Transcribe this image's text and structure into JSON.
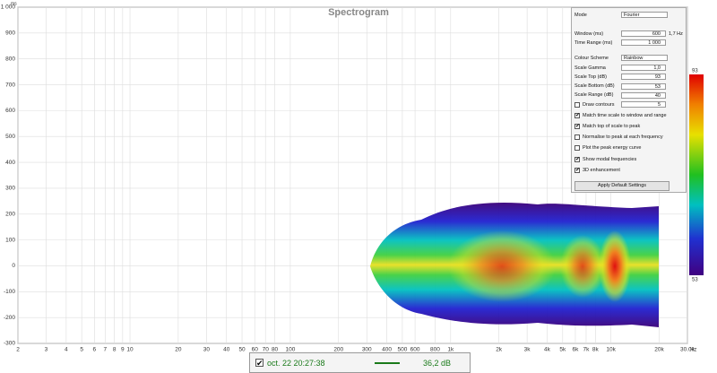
{
  "plot": {
    "title": "Spectrogram",
    "y_unit": "ms",
    "x_unit": "Hz",
    "ylim": [
      -300,
      1000
    ],
    "xlim": [
      2,
      30000
    ],
    "yticks": [
      {
        "value": 1000,
        "label": "1 000"
      },
      900,
      800,
      700,
      600,
      500,
      400,
      300,
      200,
      100,
      0,
      -100,
      -200,
      -300
    ],
    "xticks": [
      2,
      3,
      4,
      5,
      6,
      7,
      8,
      9,
      10,
      20,
      30,
      40,
      50,
      60,
      70,
      80,
      100,
      200,
      300,
      400,
      500,
      600,
      800,
      {
        "value": 1000,
        "label": "1k"
      },
      {
        "value": 2000,
        "label": "2k"
      },
      {
        "value": 3000,
        "label": "3k"
      },
      {
        "value": 4000,
        "label": "4k"
      },
      {
        "value": 5000,
        "label": "5k"
      },
      {
        "value": 6000,
        "label": "6k"
      },
      {
        "value": 7000,
        "label": "7k"
      },
      {
        "value": 8000,
        "label": "8k"
      },
      {
        "value": 10000,
        "label": "10k"
      },
      {
        "value": 20000,
        "label": "20k"
      },
      {
        "value": 30000,
        "label": "30.0k"
      }
    ]
  },
  "controls": {
    "mode": {
      "label": "Mode",
      "value": "Fourier"
    },
    "window": {
      "label": "Window (ms)",
      "value": "600",
      "note": "1,7 Hz"
    },
    "time_range": {
      "label": "Time Range (ms)",
      "value": "1 000"
    },
    "colour_scheme": {
      "label": "Colour Scheme",
      "value": "Rainbow"
    },
    "fields": [
      {
        "label": "Scale Gamma",
        "value": "1,0"
      },
      {
        "label": "Scale Top (dB)",
        "value": "93"
      },
      {
        "label": "Scale Bottom (dB)",
        "value": "53"
      },
      {
        "label": "Scale Range (dB)",
        "value": "40"
      }
    ],
    "draw_contours": {
      "label": "Draw contours",
      "checked": false,
      "value": "5"
    },
    "checkboxes": [
      {
        "label": "Match time scale to window and range",
        "checked": true
      },
      {
        "label": "Match top of scale to peak",
        "checked": true
      },
      {
        "label": "Normalise to peak at each frequency",
        "checked": false
      },
      {
        "label": "Plot the peak energy curve",
        "checked": false
      },
      {
        "label": "Show modal frequencies",
        "checked": true
      },
      {
        "label": "3D enhancement",
        "checked": true
      }
    ],
    "button": "Apply Default Settings"
  },
  "colorbar": {
    "max": 93,
    "min": 53
  },
  "legend": {
    "checked": true,
    "label": "oct. 22 20:27:38",
    "value": "36,2 dB"
  }
}
